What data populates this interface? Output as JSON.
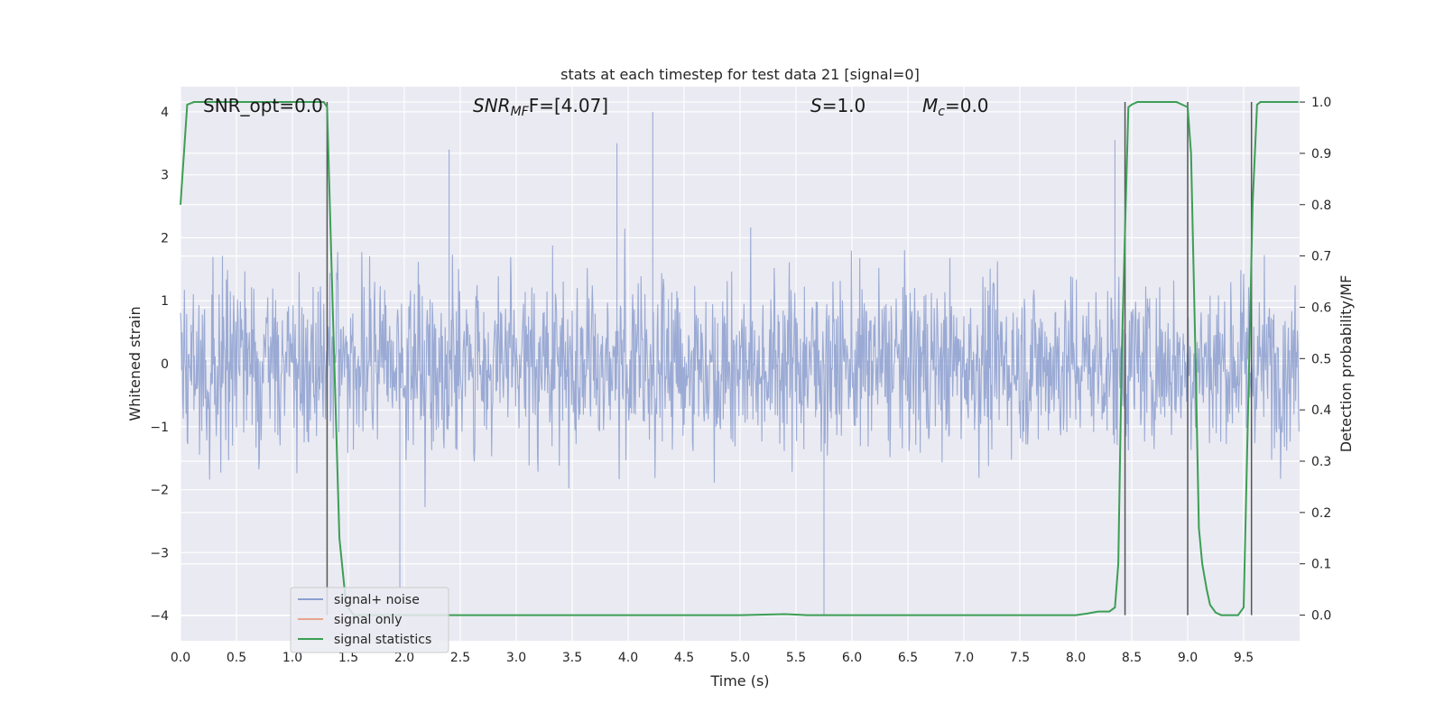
{
  "chart_data": {
    "type": "line",
    "title": "stats at each timestep for test data 21 [signal=0]",
    "xlabel": "Time (s)",
    "ylabel_left": "Whitened strain",
    "ylabel_right": "Detection probability/MF",
    "xlim": [
      0.0,
      10.0
    ],
    "ylim_left": [
      -4.4,
      4.4
    ],
    "ylim_right": [
      -0.05,
      1.03
    ],
    "x_ticks": [
      0.0,
      0.5,
      1.0,
      1.5,
      2.0,
      2.5,
      3.0,
      3.5,
      4.0,
      4.5,
      5.0,
      5.5,
      6.0,
      6.5,
      7.0,
      7.5,
      8.0,
      8.5,
      9.0,
      9.5
    ],
    "x_tick_labels": [
      "0.0",
      "0.5",
      "1.0",
      "1.5",
      "2.0",
      "2.5",
      "3.0",
      "3.5",
      "4.0",
      "4.5",
      "5.0",
      "5.5",
      "6.0",
      "6.5",
      "7.0",
      "7.5",
      "8.0",
      "8.5",
      "9.0",
      "9.5"
    ],
    "y_left_ticks": [
      -4,
      -3,
      -2,
      -1,
      0,
      1,
      2,
      3,
      4
    ],
    "y_left_tick_labels": [
      "−4",
      "−3",
      "−2",
      "−1",
      "0",
      "1",
      "2",
      "3",
      "4"
    ],
    "y_right_ticks": [
      0.0,
      0.1,
      0.2,
      0.3,
      0.4,
      0.5,
      0.6,
      0.7,
      0.8,
      0.9,
      1.0
    ],
    "y_right_tick_labels": [
      "0.0",
      "0.1",
      "0.2",
      "0.3",
      "0.4",
      "0.5",
      "0.6",
      "0.7",
      "0.8",
      "0.9",
      "1.0"
    ],
    "annotations": {
      "snr_opt": "SNR_opt=0.0",
      "snr_mf_main": "SNR",
      "snr_mf_sub": "MF",
      "snr_mf_value": "F=[4.07]",
      "s_var": "S",
      "s_value": "=1.0",
      "mc_var": "M",
      "mc_sub": "c",
      "mc_value": "=0.0"
    },
    "legend": {
      "position": "lower-left",
      "entries": [
        {
          "label": "signal+ noise",
          "color": "#8c9fcf"
        },
        {
          "label": "signal only",
          "color": "#e8a58b"
        },
        {
          "label": "signal statistics",
          "color": "#3c9e55"
        }
      ]
    },
    "vertical_markers_x": [
      1.31,
      8.44,
      9.0,
      9.57
    ],
    "series": [
      {
        "name": "signal+ noise",
        "axis": "left",
        "color": "#8c9fcf",
        "style": "dense noise, amplitude ≈ ±2 with peaks up to ≈ 4.0 near t=4.2 and −4.0 near t=5.75"
      },
      {
        "name": "signal statistics",
        "axis": "right",
        "color": "#3c9e55",
        "x": [
          0.0,
          0.06,
          0.12,
          0.3,
          0.6,
          1.0,
          1.2,
          1.28,
          1.31,
          1.36,
          1.42,
          1.48,
          1.55,
          2.0,
          3.0,
          4.0,
          5.0,
          5.4,
          5.6,
          6.0,
          7.0,
          8.0,
          8.1,
          8.2,
          8.3,
          8.35,
          8.38,
          8.41,
          8.44,
          8.47,
          8.5,
          8.55,
          8.6,
          8.8,
          8.9,
          8.95,
          9.0,
          9.03,
          9.07,
          9.1,
          9.13,
          9.17,
          9.2,
          9.25,
          9.3,
          9.35,
          9.4,
          9.45,
          9.5,
          9.55,
          9.58,
          9.62,
          9.65,
          9.7,
          9.8,
          9.9,
          9.99
        ],
        "y": [
          0.8,
          0.995,
          1.0,
          1.0,
          1.0,
          1.0,
          1.0,
          1.0,
          0.99,
          0.6,
          0.15,
          0.02,
          0.0,
          0.0,
          0.0,
          0.0,
          0.0,
          0.002,
          0.0,
          0.0,
          0.0,
          0.0,
          0.003,
          0.007,
          0.007,
          0.015,
          0.1,
          0.5,
          0.75,
          0.99,
          0.995,
          1.0,
          1.0,
          1.0,
          1.0,
          0.995,
          0.99,
          0.9,
          0.5,
          0.17,
          0.1,
          0.05,
          0.02,
          0.005,
          0.0,
          0.0,
          0.0,
          0.0,
          0.015,
          0.5,
          0.8,
          0.995,
          1.0,
          1.0,
          1.0,
          1.0,
          1.0
        ]
      }
    ]
  }
}
